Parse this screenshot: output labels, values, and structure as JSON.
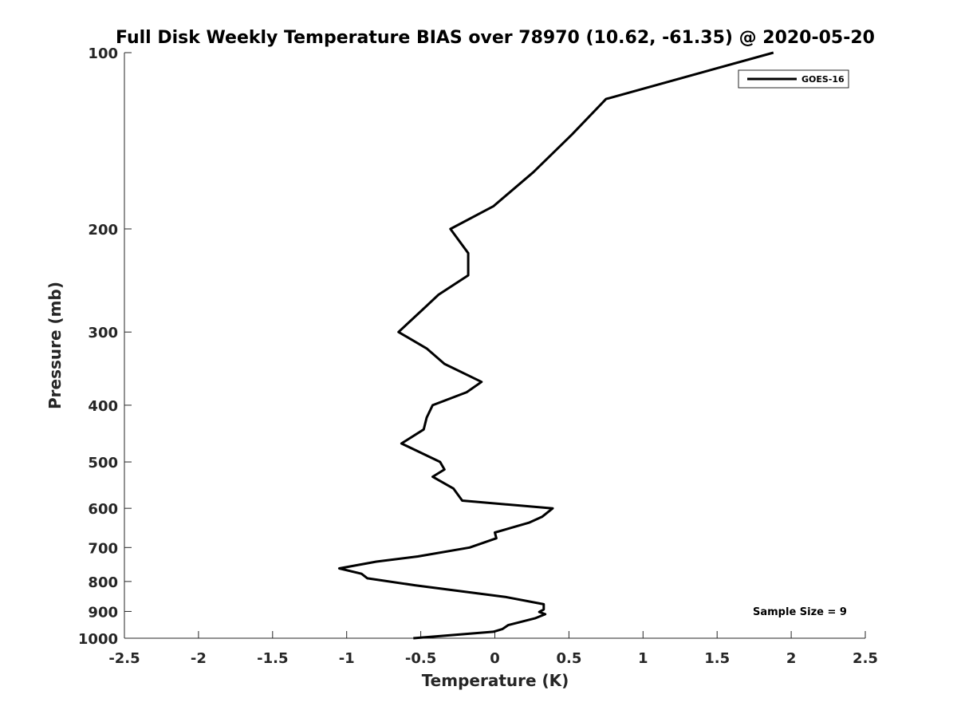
{
  "chart_data": {
    "type": "line",
    "title": "Full Disk Weekly Temperature BIAS over 78970 (10.62, -61.35) @ 2020-05-20",
    "xlabel": "Temperature (K)",
    "ylabel": "Pressure (mb)",
    "xlim": [
      -2.5,
      2.5
    ],
    "ylim": [
      1000,
      100
    ],
    "yscale": "log",
    "y_reversed": true,
    "grid": false,
    "legend_position": "top-right",
    "x_ticks": [
      "-2.5",
      "-2",
      "-1.5",
      "-1",
      "-0.5",
      "0",
      "0.5",
      "1",
      "1.5",
      "2",
      "2.5"
    ],
    "y_ticks": [
      "100",
      "200",
      "300",
      "400",
      "500",
      "600",
      "700",
      "800",
      "900",
      "1000"
    ],
    "series": [
      {
        "name": "GOES-16",
        "color": "#000000",
        "points": [
          {
            "x": 1.88,
            "y": 100
          },
          {
            "x": 0.75,
            "y": 120
          },
          {
            "x": 0.52,
            "y": 138
          },
          {
            "x": 0.26,
            "y": 160
          },
          {
            "x": -0.01,
            "y": 183
          },
          {
            "x": -0.3,
            "y": 200
          },
          {
            "x": -0.18,
            "y": 220
          },
          {
            "x": -0.18,
            "y": 240
          },
          {
            "x": -0.38,
            "y": 259
          },
          {
            "x": -0.49,
            "y": 275
          },
          {
            "x": -0.65,
            "y": 300
          },
          {
            "x": -0.46,
            "y": 320
          },
          {
            "x": -0.34,
            "y": 340
          },
          {
            "x": -0.09,
            "y": 365
          },
          {
            "x": -0.19,
            "y": 380
          },
          {
            "x": -0.42,
            "y": 400
          },
          {
            "x": -0.46,
            "y": 420
          },
          {
            "x": -0.48,
            "y": 440
          },
          {
            "x": -0.63,
            "y": 465
          },
          {
            "x": -0.37,
            "y": 500
          },
          {
            "x": -0.34,
            "y": 515
          },
          {
            "x": -0.42,
            "y": 530
          },
          {
            "x": -0.28,
            "y": 555
          },
          {
            "x": -0.22,
            "y": 582
          },
          {
            "x": 0.39,
            "y": 600
          },
          {
            "x": 0.32,
            "y": 620
          },
          {
            "x": 0.23,
            "y": 635
          },
          {
            "x": 0.0,
            "y": 660
          },
          {
            "x": 0.01,
            "y": 675
          },
          {
            "x": -0.17,
            "y": 700
          },
          {
            "x": -0.52,
            "y": 725
          },
          {
            "x": -0.8,
            "y": 740
          },
          {
            "x": -1.05,
            "y": 760
          },
          {
            "x": -0.9,
            "y": 776
          },
          {
            "x": -0.86,
            "y": 790
          },
          {
            "x": -0.54,
            "y": 812
          },
          {
            "x": 0.07,
            "y": 850
          },
          {
            "x": 0.33,
            "y": 875
          },
          {
            "x": 0.33,
            "y": 893
          },
          {
            "x": 0.3,
            "y": 902
          },
          {
            "x": 0.34,
            "y": 910
          },
          {
            "x": 0.27,
            "y": 925
          },
          {
            "x": 0.09,
            "y": 950
          },
          {
            "x": 0.05,
            "y": 965
          },
          {
            "x": -0.01,
            "y": 975
          },
          {
            "x": -0.55,
            "y": 1000
          }
        ]
      }
    ],
    "annotations": [
      {
        "text": "Sample Size = 9"
      }
    ]
  }
}
